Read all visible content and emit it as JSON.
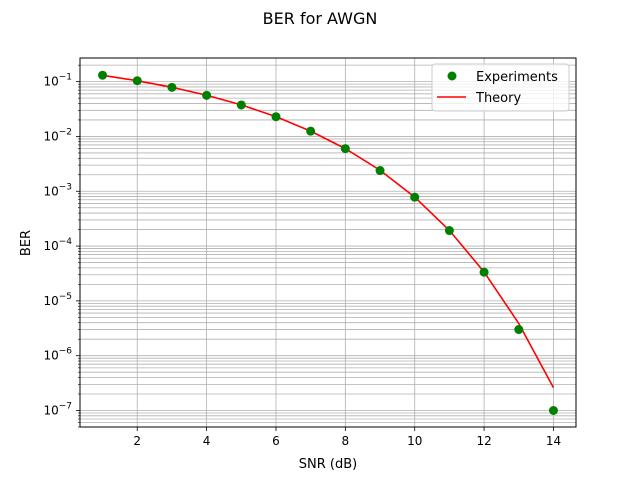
{
  "chart_data": {
    "type": "scatter",
    "title": "BER for AWGN",
    "xlabel": "SNR (dB)",
    "ylabel": "BER",
    "xlim": [
      0.35,
      14.65
    ],
    "ylim": [
      5e-08,
      0.27
    ],
    "yscale": "log",
    "grid": "both, major and minor",
    "legend": "top-right",
    "x_ticks": [
      {
        "value": 2,
        "label": "2"
      },
      {
        "value": 4,
        "label": "4"
      },
      {
        "value": 6,
        "label": "6"
      },
      {
        "value": 8,
        "label": "8"
      },
      {
        "value": 10,
        "label": "10"
      },
      {
        "value": 12,
        "label": "12"
      },
      {
        "value": 14,
        "label": "14"
      }
    ],
    "y_ticks": [
      {
        "value": 1e-07,
        "base": "10",
        "exp": "−7"
      },
      {
        "value": 1e-06,
        "base": "10",
        "exp": "−6"
      },
      {
        "value": 1e-05,
        "base": "10",
        "exp": "−5"
      },
      {
        "value": 0.0001,
        "base": "10",
        "exp": "−4"
      },
      {
        "value": 0.001,
        "base": "10",
        "exp": "−3"
      },
      {
        "value": 0.01,
        "base": "10",
        "exp": "−2"
      },
      {
        "value": 0.1,
        "base": "10",
        "exp": "−1"
      }
    ],
    "series": [
      {
        "name": "Experiments",
        "kind": "markers",
        "color": "#008000",
        "x": [
          1,
          2,
          3,
          4,
          5,
          6,
          7,
          8,
          9,
          10,
          11,
          12,
          13,
          14
        ],
        "y": [
          0.131,
          0.104,
          0.0786,
          0.0563,
          0.0375,
          0.0229,
          0.0125,
          0.006,
          0.00239,
          0.00078,
          0.000192,
          3.34e-05,
          3e-06,
          1e-07
        ]
      },
      {
        "name": "Theory",
        "kind": "line",
        "color": "#ff0000",
        "x": [
          1,
          2,
          3,
          4,
          5,
          6,
          7,
          8,
          9,
          10,
          11,
          12,
          13,
          14
        ],
        "y": [
          0.1305,
          0.104,
          0.0789,
          0.0565,
          0.0377,
          0.023,
          0.0125,
          0.006,
          0.00242,
          0.000783,
          0.000193,
          3.37e-05,
          3.87e-06,
          2.61e-07
        ]
      }
    ]
  }
}
